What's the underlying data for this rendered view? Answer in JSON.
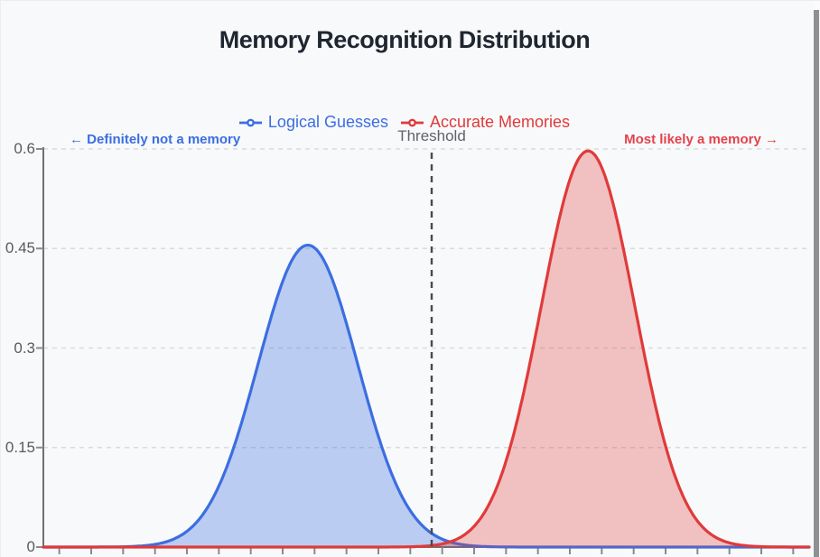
{
  "chart_data": {
    "type": "area",
    "title": "Memory Recognition Distribution",
    "legend_position": "top-center",
    "grid": "horizontal-dashed",
    "x_count": 24,
    "x_tick_labels": [],
    "ylim": [
      0,
      0.6
    ],
    "yticks": [
      "0",
      "0.15",
      "0.3",
      "0.45",
      "0.6"
    ],
    "ytick_values": [
      0,
      0.15,
      0.3,
      0.45,
      0.6
    ],
    "series": [
      {
        "name": "Logical Guesses",
        "color": "#3b6ee0",
        "fill": "rgba(59,110,224,0.32)",
        "shape": "gaussian",
        "mean": 7.79,
        "sigma": 1.56,
        "peak": 0.455,
        "values": [
          0,
          0,
          0.001,
          0.004,
          0.024,
          0.091,
          0.235,
          0.4,
          0.451,
          0.336,
          0.166,
          0.054,
          0.012,
          0.002,
          0,
          0,
          0,
          0,
          0,
          0,
          0,
          0,
          0,
          0
        ]
      },
      {
        "name": "Accurate Memories",
        "color": "#e03a3a",
        "fill": "rgba(224,58,58,0.30)",
        "shape": "gaussian",
        "mean": 16.57,
        "sigma": 1.47,
        "peak": 0.597,
        "values": [
          0,
          0,
          0,
          0,
          0,
          0,
          0,
          0,
          0,
          0,
          0,
          0.001,
          0.005,
          0.031,
          0.129,
          0.338,
          0.554,
          0.572,
          0.372,
          0.152,
          0.039,
          0.006,
          0.001,
          0
        ]
      }
    ],
    "threshold": {
      "label": "Threshold",
      "x_tick": 11.67,
      "line_color": "#4a4a4a"
    },
    "annotations": [
      {
        "text": "← Definitely not a memory",
        "color": "#3a6ee2",
        "side": "left"
      },
      {
        "text": "Most likely a memory →",
        "color": "#e2434b",
        "side": "right"
      }
    ]
  }
}
